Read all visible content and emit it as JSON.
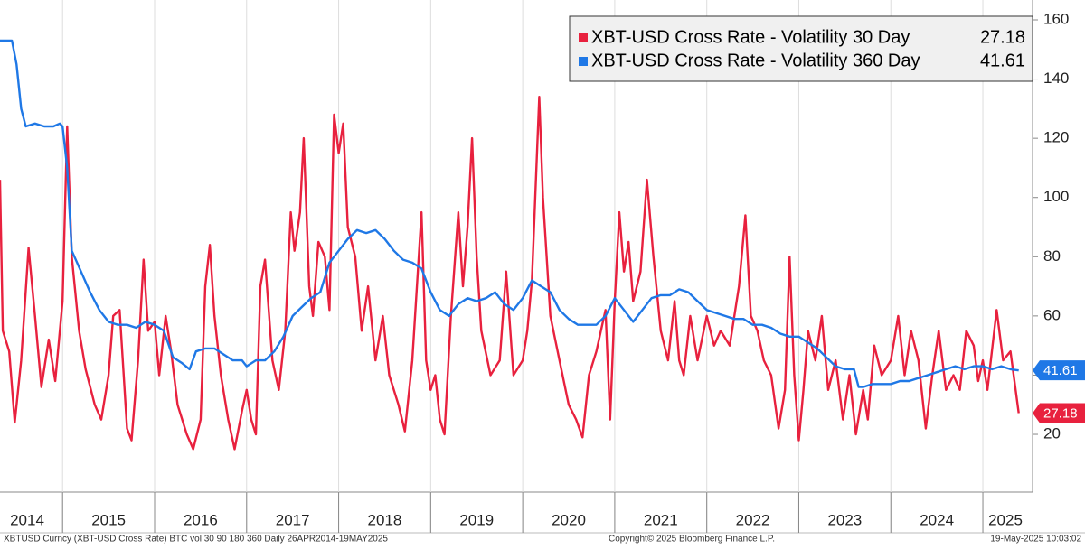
{
  "chart_data": {
    "type": "line",
    "xlim": [
      2014.32,
      2025.54
    ],
    "ylim": [
      0,
      160
    ],
    "yticks": [
      20,
      40,
      60,
      80,
      100,
      120,
      140,
      160
    ],
    "xticks": [
      {
        "value": 2014.5,
        "label": "2014"
      },
      {
        "value": 2015.5,
        "label": "2015"
      },
      {
        "value": 2016.5,
        "label": "2016"
      },
      {
        "value": 2017.5,
        "label": "2017"
      },
      {
        "value": 2018.5,
        "label": "2018"
      },
      {
        "value": 2019.5,
        "label": "2019"
      },
      {
        "value": 2020.5,
        "label": "2020"
      },
      {
        "value": 2021.5,
        "label": "2021"
      },
      {
        "value": 2022.5,
        "label": "2022"
      },
      {
        "value": 2023.5,
        "label": "2023"
      },
      {
        "value": 2024.5,
        "label": "2024"
      },
      {
        "value": 2025.5,
        "label": "2025"
      }
    ],
    "series": [
      {
        "name": "XBT-USD Cross Rate - Volatility 30 Day",
        "color": "#e8213e",
        "x": [
          2014.32,
          2014.35,
          2014.42,
          2014.48,
          2014.55,
          2014.63,
          2014.7,
          2014.77,
          2014.85,
          2014.92,
          2015.0,
          2015.05,
          2015.1,
          2015.18,
          2015.25,
          2015.35,
          2015.42,
          2015.5,
          2015.55,
          2015.62,
          2015.7,
          2015.75,
          2015.82,
          2015.88,
          2015.93,
          2016.0,
          2016.05,
          2016.12,
          2016.18,
          2016.25,
          2016.35,
          2016.42,
          2016.5,
          2016.55,
          2016.6,
          2016.65,
          2016.72,
          2016.8,
          2016.87,
          2016.95,
          2017.0,
          2017.05,
          2017.1,
          2017.15,
          2017.2,
          2017.28,
          2017.35,
          2017.42,
          2017.48,
          2017.52,
          2017.58,
          2017.62,
          2017.68,
          2017.72,
          2017.78,
          2017.85,
          2017.9,
          2017.95,
          2018.0,
          2018.05,
          2018.1,
          2018.18,
          2018.25,
          2018.32,
          2018.4,
          2018.48,
          2018.55,
          2018.65,
          2018.72,
          2018.8,
          2018.9,
          2018.95,
          2019.0,
          2019.05,
          2019.1,
          2019.15,
          2019.22,
          2019.3,
          2019.35,
          2019.4,
          2019.45,
          2019.5,
          2019.55,
          2019.65,
          2019.75,
          2019.82,
          2019.9,
          2020.0,
          2020.05,
          2020.1,
          2020.18,
          2020.22,
          2020.3,
          2020.4,
          2020.5,
          2020.58,
          2020.65,
          2020.72,
          2020.8,
          2020.9,
          2020.95,
          2021.0,
          2021.05,
          2021.1,
          2021.15,
          2021.2,
          2021.28,
          2021.35,
          2021.42,
          2021.5,
          2021.58,
          2021.65,
          2021.7,
          2021.75,
          2021.82,
          2021.9,
          2022.0,
          2022.08,
          2022.15,
          2022.25,
          2022.35,
          2022.42,
          2022.48,
          2022.55,
          2022.62,
          2022.7,
          2022.78,
          2022.85,
          2022.9,
          2022.95,
          2023.0,
          2023.05,
          2023.1,
          2023.18,
          2023.25,
          2023.32,
          2023.4,
          2023.48,
          2023.55,
          2023.62,
          2023.7,
          2023.75,
          2023.82,
          2023.9,
          2024.0,
          2024.08,
          2024.15,
          2024.22,
          2024.3,
          2024.38,
          2024.45,
          2024.52,
          2024.6,
          2024.68,
          2024.75,
          2024.82,
          2024.9,
          2024.95,
          2025.0,
          2025.05,
          2025.15,
          2025.22,
          2025.3,
          2025.39
        ],
        "values": [
          106,
          55,
          48,
          24,
          45,
          83,
          60,
          36,
          52,
          38,
          65,
          124,
          80,
          55,
          42,
          30,
          25,
          40,
          60,
          62,
          22,
          18,
          45,
          79,
          55,
          58,
          40,
          60,
          48,
          30,
          20,
          15,
          25,
          70,
          84,
          60,
          40,
          25,
          15,
          28,
          35,
          25,
          20,
          70,
          79,
          45,
          35,
          55,
          95,
          82,
          95,
          120,
          70,
          60,
          85,
          80,
          62,
          128,
          115,
          125,
          90,
          80,
          55,
          70,
          45,
          60,
          40,
          30,
          21,
          45,
          95,
          45,
          35,
          40,
          25,
          20,
          60,
          95,
          70,
          90,
          120,
          80,
          55,
          40,
          45,
          75,
          40,
          45,
          55,
          72,
          134,
          100,
          60,
          45,
          30,
          25,
          19,
          40,
          48,
          62,
          25,
          65,
          95,
          75,
          85,
          65,
          75,
          106,
          80,
          55,
          45,
          65,
          45,
          40,
          60,
          45,
          60,
          50,
          55,
          50,
          70,
          94,
          60,
          55,
          45,
          40,
          22,
          35,
          80,
          40,
          18,
          35,
          55,
          45,
          60,
          35,
          45,
          25,
          40,
          20,
          35,
          25,
          50,
          40,
          45,
          60,
          40,
          55,
          45,
          22,
          40,
          55,
          35,
          40,
          35,
          55,
          50,
          38,
          45,
          35,
          62,
          45,
          48,
          27.18
        ]
      },
      {
        "name": "XBT-USD Cross Rate - Volatility 360 Day",
        "color": "#1f78e6",
        "x": [
          2014.32,
          2014.45,
          2014.5,
          2014.55,
          2014.6,
          2014.7,
          2014.8,
          2014.9,
          2014.97,
          2015.0,
          2015.05,
          2015.1,
          2015.2,
          2015.3,
          2015.4,
          2015.5,
          2015.6,
          2015.7,
          2015.8,
          2015.9,
          2016.0,
          2016.1,
          2016.2,
          2016.3,
          2016.38,
          2016.45,
          2016.55,
          2016.65,
          2016.75,
          2016.85,
          2016.95,
          2017.0,
          2017.1,
          2017.2,
          2017.3,
          2017.4,
          2017.5,
          2017.6,
          2017.7,
          2017.8,
          2017.9,
          2018.0,
          2018.1,
          2018.2,
          2018.3,
          2018.4,
          2018.5,
          2018.6,
          2018.7,
          2018.8,
          2018.9,
          2019.0,
          2019.1,
          2019.2,
          2019.3,
          2019.4,
          2019.5,
          2019.6,
          2019.7,
          2019.8,
          2019.9,
          2020.0,
          2020.1,
          2020.2,
          2020.3,
          2020.4,
          2020.5,
          2020.6,
          2020.7,
          2020.8,
          2020.9,
          2021.0,
          2021.1,
          2021.2,
          2021.3,
          2021.4,
          2021.5,
          2021.6,
          2021.7,
          2021.8,
          2021.9,
          2022.0,
          2022.1,
          2022.2,
          2022.3,
          2022.4,
          2022.5,
          2022.6,
          2022.7,
          2022.8,
          2022.9,
          2023.0,
          2023.1,
          2023.2,
          2023.3,
          2023.4,
          2023.5,
          2023.6,
          2023.65,
          2023.7,
          2023.8,
          2023.9,
          2024.0,
          2024.1,
          2024.2,
          2024.3,
          2024.4,
          2024.5,
          2024.6,
          2024.7,
          2024.8,
          2024.9,
          2025.0,
          2025.1,
          2025.2,
          2025.3,
          2025.39
        ],
        "values": [
          153,
          153,
          145,
          130,
          124,
          125,
          124,
          124,
          125,
          124,
          110,
          82,
          75,
          68,
          62,
          58,
          57,
          57,
          56,
          58,
          57,
          55,
          46,
          44,
          42,
          48,
          49,
          49,
          47,
          45,
          45,
          43,
          45,
          45,
          48,
          53,
          60,
          63,
          66,
          68,
          78,
          82,
          86,
          89,
          88,
          89,
          86,
          82,
          79,
          78,
          76,
          68,
          62,
          60,
          64,
          66,
          65,
          66,
          68,
          64,
          62,
          66,
          72,
          70,
          68,
          62,
          59,
          57,
          57,
          57,
          60,
          66,
          62,
          58,
          62,
          66,
          67,
          67,
          69,
          68,
          65,
          62,
          61,
          60,
          59,
          59,
          57,
          57,
          56,
          54,
          53,
          53,
          51,
          49,
          46,
          43,
          42,
          42,
          36,
          36,
          37,
          37,
          37,
          38,
          38,
          39,
          40,
          41,
          42,
          43,
          42,
          43,
          43,
          42,
          43,
          42,
          41.61
        ]
      }
    ],
    "footer": {
      "left": "XBTUSD Curncy (XBT-USD Cross Rate) BTC vol 30 90 180 360  Daily 26APR2014-19MAY2025",
      "center": "Copyright© 2025 Bloomberg Finance L.P.",
      "right": "19-May-2025 10:03:02"
    }
  }
}
